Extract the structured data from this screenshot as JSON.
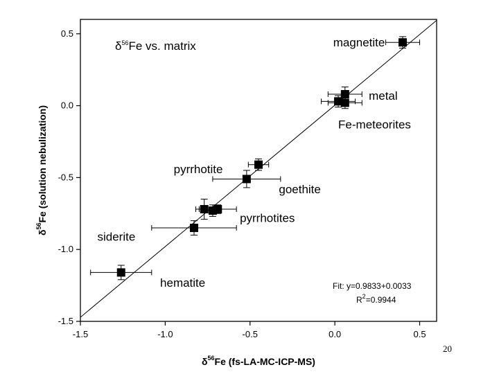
{
  "page_number": "20",
  "chart_data": {
    "type": "scatter",
    "title": "δ56Fe vs. matrix",
    "title_parts": {
      "pre": "δ",
      "sup": "56",
      "post": "Fe vs. matrix"
    },
    "xlabel": "δ56Fe (fs-LA-MC-ICP-MS)",
    "xlabel_parts": {
      "pre": "δ",
      "sup": "56",
      "post": "Fe (fs-LA-MC-ICP-MS)"
    },
    "ylabel": "δ56Fe (solution nebulization)",
    "ylabel_parts": {
      "pre": "δ",
      "sup": "56",
      "post": "Fe (solution nebulization)"
    },
    "xlim": [
      -1.5,
      0.6
    ],
    "ylim": [
      -1.5,
      0.6
    ],
    "xticks": [
      -1.5,
      -1.0,
      -0.5,
      0.0,
      0.5
    ],
    "xtick_labels": [
      "-1.5",
      "-1.0",
      "-0.5",
      "0.0",
      "0.5"
    ],
    "yticks": [
      -1.5,
      -1.0,
      -0.5,
      0.0,
      0.5
    ],
    "ytick_labels": [
      "-1.5",
      "-1.0",
      "-0.5",
      "0.0",
      "0.5"
    ],
    "grid": false,
    "marker": "square",
    "marker_color": "#000000",
    "points": [
      {
        "x": 0.4,
        "y": 0.44,
        "xerr": 0.1,
        "yerr": 0.04
      },
      {
        "x": 0.06,
        "y": 0.08,
        "xerr": 0.1,
        "yerr": 0.05
      },
      {
        "x": 0.02,
        "y": 0.03,
        "xerr": 0.1,
        "yerr": 0.04
      },
      {
        "x": 0.06,
        "y": 0.02,
        "xerr": 0.1,
        "yerr": 0.04
      },
      {
        "x": -0.45,
        "y": -0.41,
        "xerr": 0.06,
        "yerr": 0.04
      },
      {
        "x": -0.52,
        "y": -0.51,
        "xerr": 0.2,
        "yerr": 0.06
      },
      {
        "x": -0.77,
        "y": -0.72,
        "xerr": 0.05,
        "yerr": 0.07
      },
      {
        "x": -0.72,
        "y": -0.73,
        "xerr": 0.05,
        "yerr": 0.04
      },
      {
        "x": -0.69,
        "y": -0.72,
        "xerr": 0.11,
        "yerr": 0.03
      },
      {
        "x": -0.83,
        "y": -0.85,
        "xerr": 0.25,
        "yerr": 0.05
      },
      {
        "x": -1.26,
        "y": -1.16,
        "xerr": 0.18,
        "yerr": 0.05
      }
    ],
    "annotations": [
      {
        "text": "magnetite",
        "x": -0.01,
        "y": 0.44
      },
      {
        "text": "metal",
        "x": 0.2,
        "y": 0.07
      },
      {
        "text": "Fe-meteorites",
        "x": 0.02,
        "y": -0.13
      },
      {
        "text": "pyrrhotite",
        "x": -0.95,
        "y": -0.44
      },
      {
        "text": "goethite",
        "x": -0.33,
        "y": -0.58
      },
      {
        "text": "pyrrhotites",
        "x": -0.56,
        "y": -0.78
      },
      {
        "text": "siderite",
        "x": -1.4,
        "y": -0.91
      },
      {
        "text": "hematite",
        "x": -1.03,
        "y": -1.23
      }
    ],
    "fit_line": {
      "slope": 0.9833,
      "intercept": 0.0033
    },
    "fit_text": "Fit: y=0.9833+0.0033",
    "r2_text": {
      "pre": "R",
      "sup": "2",
      "post": "=0.9944"
    }
  }
}
